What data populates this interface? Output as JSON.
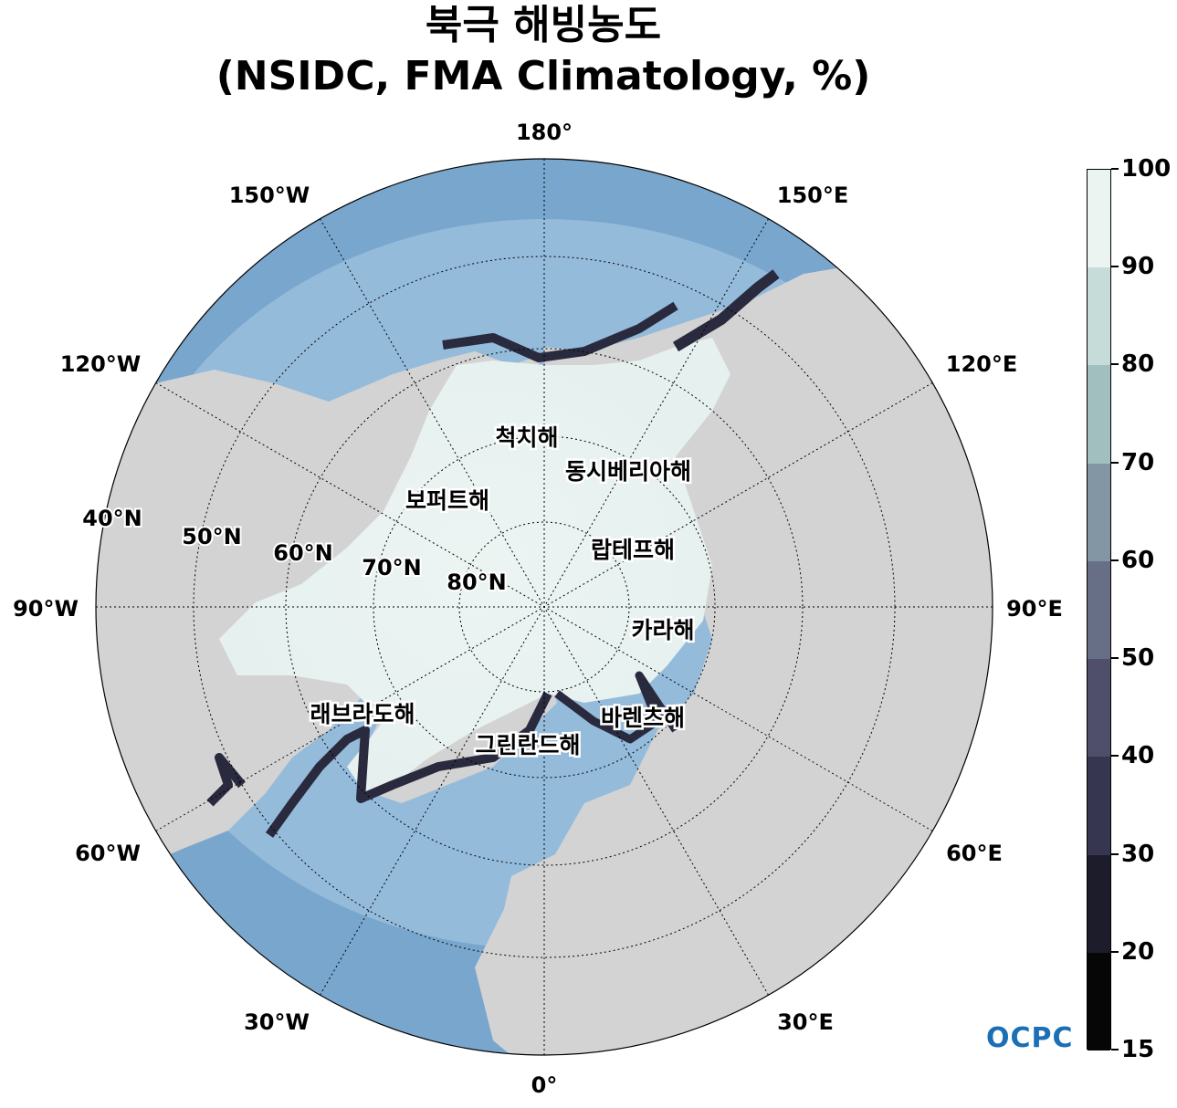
{
  "title": {
    "line1": "북극 해빙농도",
    "line2": "(NSIDC, FMA Climatology, %)"
  },
  "longitude_labels": {
    "lon_180": "180°",
    "lon_150w": "150°W",
    "lon_150e": "150°E",
    "lon_120w": "120°W",
    "lon_120e": "120°E",
    "lon_90w": "90°W",
    "lon_90e": "90°E",
    "lon_60w": "60°W",
    "lon_60e": "60°E",
    "lon_30w": "30°W",
    "lon_30e": "30°E",
    "lon_0": "0°"
  },
  "latitude_labels": {
    "lat_40": "40°N",
    "lat_50": "50°N",
    "lat_60": "60°N",
    "lat_70": "70°N",
    "lat_80": "80°N"
  },
  "seas": {
    "chukchi": "척치해",
    "east_siberian": "동시베리아해",
    "beaufort": "보퍼트해",
    "laptev": "랍테프해",
    "kara": "카라해",
    "labrador": "래브라도해",
    "barents": "바렌츠해",
    "greenland": "그린란드해"
  },
  "colorbar": {
    "ticks": [
      "100",
      "90",
      "80",
      "70",
      "60",
      "50",
      "40",
      "30",
      "20",
      "15"
    ],
    "colors": [
      "#ecf4f2",
      "#c6dcd9",
      "#a2bfbf",
      "#8297a3",
      "#666f85",
      "#4f4e6b",
      "#373650",
      "#1d1c2a",
      "#060606"
    ]
  },
  "colors": {
    "land": "#d3d3d3",
    "ocean": "#79a6cd",
    "ocean_light": "#b9d6ec",
    "ice": "#ecf4f2",
    "ice_edge": "#2a2a3f"
  },
  "logo": "OCPC"
}
